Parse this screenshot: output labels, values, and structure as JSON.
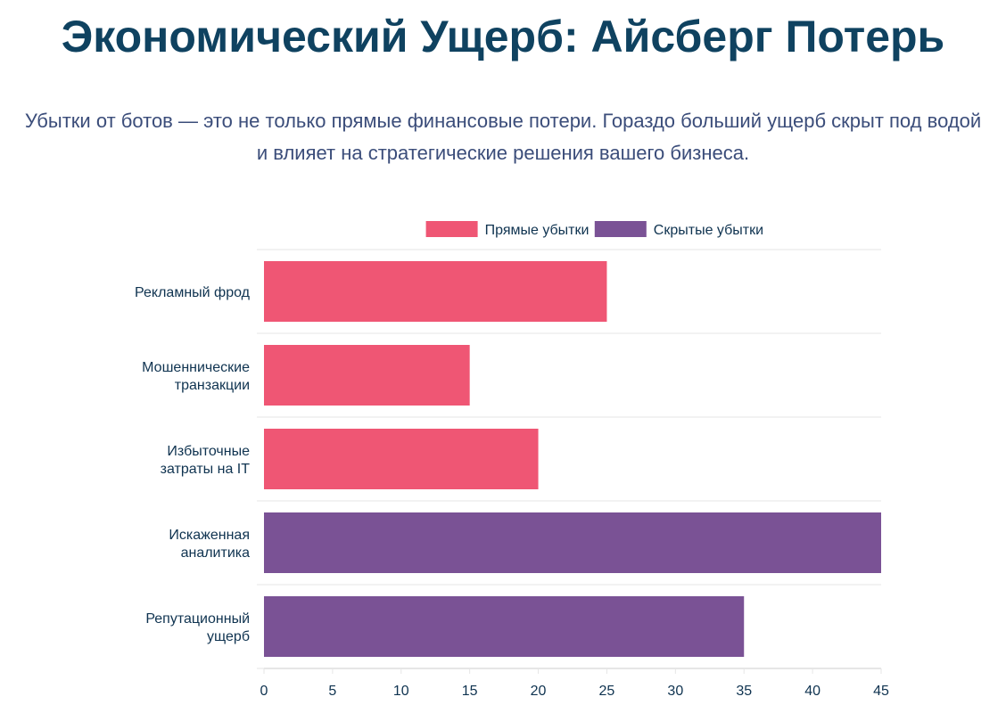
{
  "page": {
    "title": "Экономический Ущерб: Айсберг Потерь",
    "subtitle": "Убытки от ботов — это не только прямые финансовые потери. Гораздо больший ущерб скрыт под водой и влияет на стратегические решения вашего бизнеса."
  },
  "colors": {
    "title": "#0f4260",
    "subtitle": "#3b4d7a",
    "direct": "#ef5674",
    "hidden": "#7a5295",
    "grid": "#e6e6e6",
    "axis_text": "#0f3350"
  },
  "chart_data": {
    "type": "bar",
    "orientation": "horizontal",
    "categories": [
      [
        "Рекламный фрод"
      ],
      [
        "Мошеннические",
        "транзакции"
      ],
      [
        "Избыточные",
        "затраты на IT"
      ],
      [
        "Искаженная",
        "аналитика"
      ],
      [
        "Репутационный",
        "ущерб"
      ]
    ],
    "series": [
      {
        "name": "Прямые убытки",
        "color": "#ef5674",
        "values": [
          25,
          15,
          20,
          null,
          null
        ]
      },
      {
        "name": "Скрытые убытки",
        "color": "#7a5295",
        "values": [
          null,
          null,
          null,
          45,
          35
        ]
      }
    ],
    "xlim": [
      0,
      45
    ],
    "xticks": [
      0,
      5,
      10,
      15,
      20,
      25,
      30,
      35,
      40,
      45
    ],
    "legend_position": "top-center",
    "grid": "horizontal-category-lines"
  }
}
